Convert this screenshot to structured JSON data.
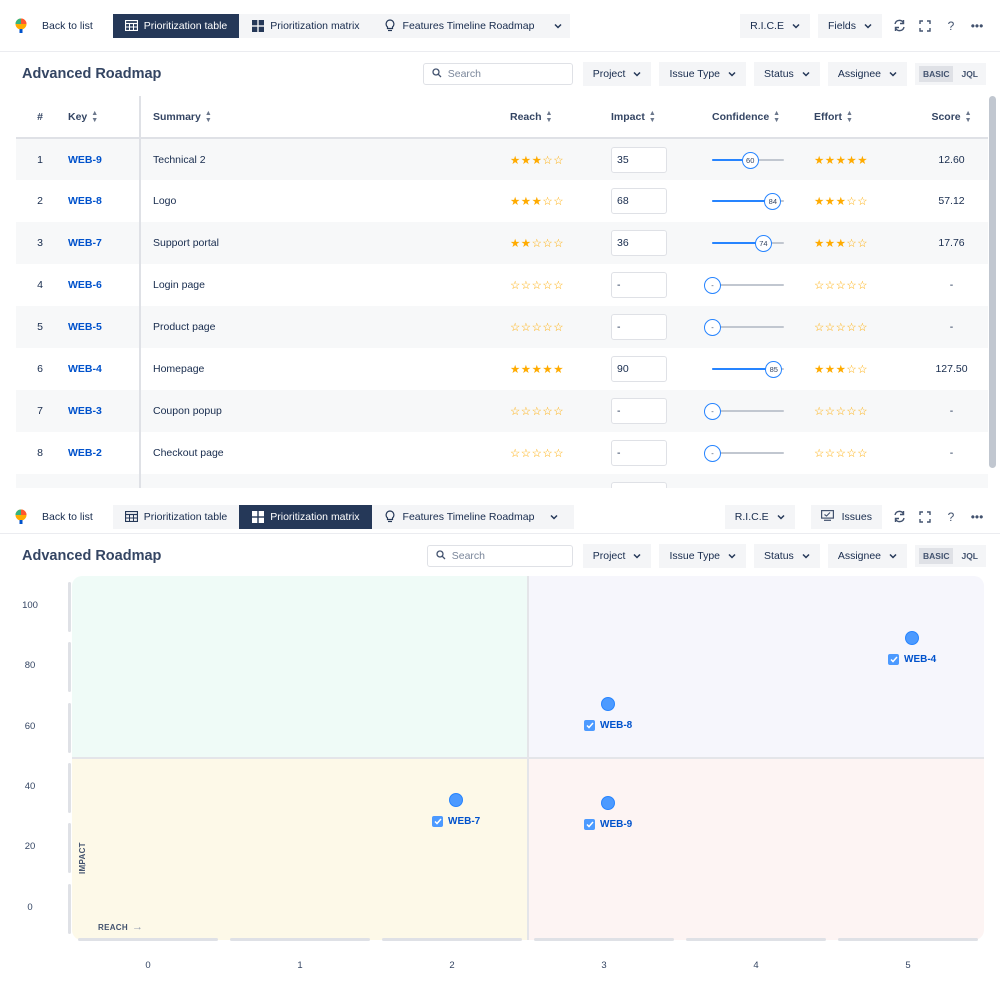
{
  "nav": {
    "back_label": "Back to list",
    "tabs": [
      "Prioritization table",
      "Prioritization matrix",
      "Features Timeline Roadmap"
    ],
    "rice_label": "R.I.C.E",
    "fields_label": "Fields",
    "issues_label": "Issues",
    "help_label": "?",
    "more_label": "•••"
  },
  "toolbar": {
    "title": "Advanced Roadmap",
    "search_placeholder": "Search",
    "filters": [
      "Project",
      "Issue Type",
      "Status",
      "Assignee"
    ],
    "mode_basic": "BASIC",
    "mode_jql": "JQL"
  },
  "table": {
    "headers": [
      "#",
      "Key",
      "Summary",
      "Reach",
      "Impact",
      "Confidence",
      "Effort",
      "Score"
    ],
    "rows": [
      {
        "num": "1",
        "key": "WEB-9",
        "summary": "Technical 2",
        "reach": 3,
        "impact": "35",
        "confidence": 60,
        "confidence_label": "60",
        "effort": 5,
        "score": "12.60"
      },
      {
        "num": "2",
        "key": "WEB-8",
        "summary": "Logo",
        "reach": 3,
        "impact": "68",
        "confidence": 84,
        "confidence_label": "84",
        "effort": 3,
        "score": "57.12"
      },
      {
        "num": "3",
        "key": "WEB-7",
        "summary": "Support portal",
        "reach": 2,
        "impact": "36",
        "confidence": 74,
        "confidence_label": "74",
        "effort": 3,
        "score": "17.76"
      },
      {
        "num": "4",
        "key": "WEB-6",
        "summary": "Login page",
        "reach": 0,
        "impact": "-",
        "confidence": 0,
        "confidence_label": "-",
        "effort": 0,
        "score": "-"
      },
      {
        "num": "5",
        "key": "WEB-5",
        "summary": "Product page",
        "reach": 0,
        "impact": "-",
        "confidence": 0,
        "confidence_label": "-",
        "effort": 0,
        "score": "-"
      },
      {
        "num": "6",
        "key": "WEB-4",
        "summary": "Homepage",
        "reach": 5,
        "impact": "90",
        "confidence": 85,
        "confidence_label": "85",
        "effort": 3,
        "score": "127.50"
      },
      {
        "num": "7",
        "key": "WEB-3",
        "summary": "Coupon popup",
        "reach": 0,
        "impact": "-",
        "confidence": 0,
        "confidence_label": "-",
        "effort": 0,
        "score": "-"
      },
      {
        "num": "8",
        "key": "WEB-2",
        "summary": "Checkout page",
        "reach": 0,
        "impact": "-",
        "confidence": 0,
        "confidence_label": "-",
        "effort": 0,
        "score": "-"
      },
      {
        "num": "",
        "key": "",
        "summary": "",
        "reach": 0,
        "impact": "",
        "confidence": 0,
        "confidence_label": "",
        "effort": 0,
        "score": ""
      }
    ]
  },
  "matrix": {
    "x_axis_label": "REACH",
    "y_axis_label": "IMPACT",
    "x_ticks": [
      "0",
      "1",
      "2",
      "3",
      "4",
      "5"
    ],
    "y_ticks": [
      "100",
      "80",
      "60",
      "40",
      "20",
      "0"
    ],
    "points": [
      {
        "key": "WEB-4",
        "reach": 5,
        "impact": 90
      },
      {
        "key": "WEB-8",
        "reach": 3,
        "impact": 68
      },
      {
        "key": "WEB-7",
        "reach": 2,
        "impact": 36
      },
      {
        "key": "WEB-9",
        "reach": 3,
        "impact": 35
      }
    ]
  },
  "colors": {
    "accent": "#0052cc",
    "active_tab": "#253858",
    "star": "#ffab00",
    "slider": "#2684ff"
  }
}
